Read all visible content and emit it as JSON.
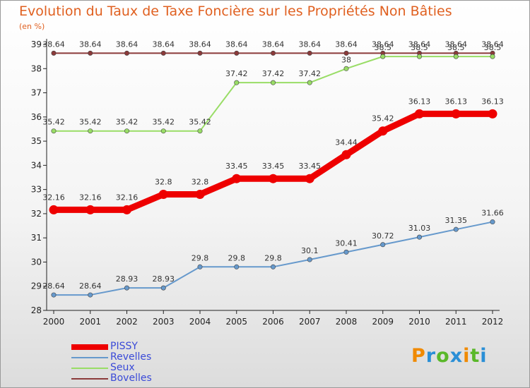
{
  "chart_data": {
    "type": "line",
    "title": "Evolution du Taux de Taxe Foncière sur les Propriétés Non Bâties",
    "subtitle": "(en %)",
    "x": [
      "2000",
      "2001",
      "2002",
      "2003",
      "2004",
      "2005",
      "2006",
      "2007",
      "2008",
      "2009",
      "2010",
      "2011",
      "2012"
    ],
    "ylim": [
      28,
      39
    ],
    "yticks": [
      28,
      29,
      30,
      31,
      32,
      33,
      34,
      35,
      36,
      37,
      38,
      39
    ],
    "series": [
      {
        "name": "Bovelles",
        "color": "#8b3a3a",
        "width": 2,
        "values": [
          38.64,
          38.64,
          38.64,
          38.64,
          38.64,
          38.64,
          38.64,
          38.64,
          38.64,
          38.64,
          38.64,
          38.64,
          38.64
        ]
      },
      {
        "name": "Seux",
        "color": "#99dd66",
        "width": 2,
        "values": [
          35.42,
          35.42,
          35.42,
          35.42,
          35.42,
          37.42,
          37.42,
          37.42,
          38,
          38.5,
          38.5,
          38.5,
          38.5
        ]
      },
      {
        "name": "Revelles",
        "color": "#6699cc",
        "width": 2,
        "values": [
          28.64,
          28.64,
          28.93,
          28.93,
          29.8,
          29.8,
          29.8,
          30.1,
          30.41,
          30.72,
          31.03,
          31.35,
          31.66
        ]
      },
      {
        "name": "PISSY",
        "color": "#ee0000",
        "width": 9,
        "values": [
          32.16,
          32.16,
          32.16,
          32.8,
          32.8,
          33.45,
          33.45,
          33.45,
          34.44,
          35.42,
          36.13,
          36.13,
          36.13
        ]
      }
    ],
    "legend": [
      "PISSY",
      "Revelles",
      "Seux",
      "Bovelles"
    ],
    "legend_position": "bottom-left"
  },
  "brand": {
    "letters": [
      "P",
      "r",
      "o",
      "x",
      "i",
      "t",
      "i"
    ],
    "colors": [
      "#f08a00",
      "#2a8fd6",
      "#5ab82a",
      "#2a8fd6",
      "#f08a00",
      "#5ab82a",
      "#2a8fd6"
    ]
  }
}
